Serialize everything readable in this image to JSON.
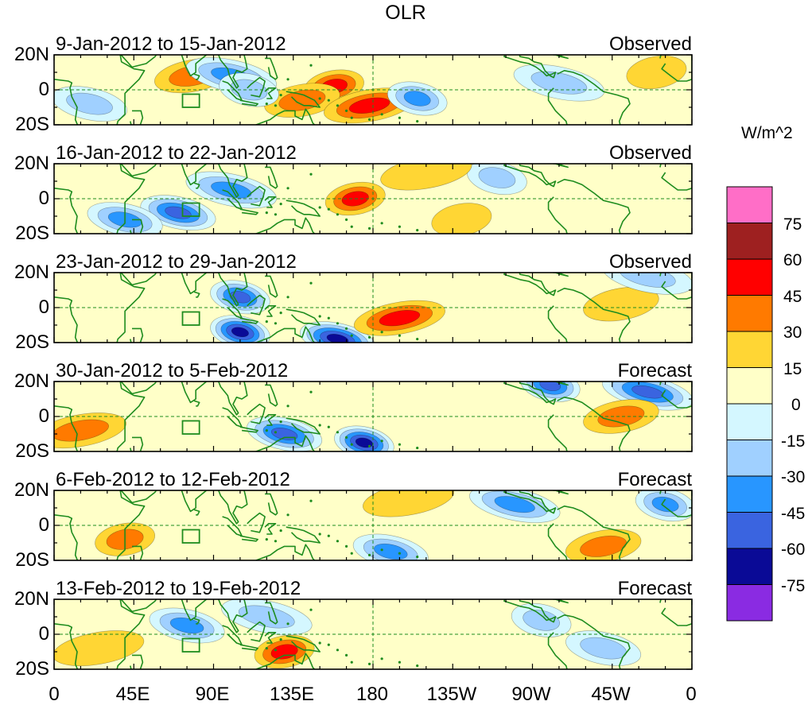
{
  "title": "OLR",
  "units": "W/m^2",
  "panels": [
    {
      "period": "9-Jan-2012 to 15-Jan-2012",
      "type": "Observed"
    },
    {
      "period": "16-Jan-2012 to 22-Jan-2012",
      "type": "Observed"
    },
    {
      "period": "23-Jan-2012 to 29-Jan-2012",
      "type": "Observed"
    },
    {
      "period": "30-Jan-2012 to 5-Feb-2012",
      "type": "Forecast"
    },
    {
      "period": "6-Feb-2012 to 12-Feb-2012",
      "type": "Forecast"
    },
    {
      "period": "13-Feb-2012 to 19-Feb-2012",
      "type": "Forecast"
    }
  ],
  "lat_ticks": [
    "20N",
    "0",
    "20S"
  ],
  "lon_ticks": [
    "0",
    "45E",
    "90E",
    "135E",
    "180",
    "135W",
    "90W",
    "45W",
    "0"
  ],
  "colorbar": {
    "labels": [
      "75",
      "60",
      "45",
      "30",
      "15",
      "0",
      "-15",
      "-30",
      "-45",
      "-60",
      "-75"
    ],
    "colors": [
      "#ff6ec7",
      "#9e2020",
      "#ff0000",
      "#ff7a00",
      "#ffd634",
      "#ffffc8",
      "#d4f7ff",
      "#a0d0ff",
      "#2896ff",
      "#3a64e0",
      "#0a0a96",
      "#8a2be2"
    ]
  },
  "chart_data": {
    "type": "heatmap",
    "title": "OLR",
    "units": "W/m^2",
    "x_range": [
      "0",
      "360"
    ],
    "y_range": [
      "20S",
      "20N"
    ],
    "levels": [
      -75,
      -60,
      -45,
      -30,
      -15,
      0,
      15,
      30,
      45,
      60,
      75
    ],
    "panels": [
      {
        "label": "9-Jan-2012 to 15-Jan-2012",
        "type": "Observed",
        "anomalies": [
          {
            "lon": 158,
            "lat": 2,
            "value": 45
          },
          {
            "lon": 140,
            "lat": -6,
            "value": 30
          },
          {
            "lon": 178,
            "lat": -9,
            "value": 45
          },
          {
            "lon": 205,
            "lat": -5,
            "value": -45
          },
          {
            "lon": 78,
            "lat": 8,
            "value": 30
          },
          {
            "lon": 100,
            "lat": 8,
            "value": -45
          },
          {
            "lon": 110,
            "lat": 0,
            "value": -30
          },
          {
            "lon": 20,
            "lat": -8,
            "value": -30
          },
          {
            "lon": 285,
            "lat": 4,
            "value": -30
          },
          {
            "lon": 340,
            "lat": 10,
            "value": 15
          }
        ]
      },
      {
        "label": "16-Jan-2012 to 22-Jan-2012",
        "type": "Observed",
        "anomalies": [
          {
            "lon": 170,
            "lat": 0,
            "value": 45
          },
          {
            "lon": 70,
            "lat": -8,
            "value": -60
          },
          {
            "lon": 100,
            "lat": 5,
            "value": -45
          },
          {
            "lon": 250,
            "lat": 12,
            "value": -30
          },
          {
            "lon": 40,
            "lat": -12,
            "value": -45
          },
          {
            "lon": 210,
            "lat": 15,
            "value": 15
          },
          {
            "lon": 230,
            "lat": -12,
            "value": 15
          }
        ]
      },
      {
        "label": "23-Jan-2012 to 29-Jan-2012",
        "type": "Observed",
        "anomalies": [
          {
            "lon": 105,
            "lat": -14,
            "value": -75
          },
          {
            "lon": 160,
            "lat": -18,
            "value": -75
          },
          {
            "lon": 195,
            "lat": -6,
            "value": 45
          },
          {
            "lon": 105,
            "lat": 6,
            "value": -60
          },
          {
            "lon": 320,
            "lat": 2,
            "value": 15
          },
          {
            "lon": 335,
            "lat": 18,
            "value": -30
          }
        ]
      },
      {
        "label": "30-Jan-2012 to 5-Feb-2012",
        "type": "Forecast",
        "anomalies": [
          {
            "lon": 175,
            "lat": -15,
            "value": -75
          },
          {
            "lon": 130,
            "lat": -10,
            "value": -60
          },
          {
            "lon": 335,
            "lat": 14,
            "value": -60
          },
          {
            "lon": 280,
            "lat": 18,
            "value": -60
          },
          {
            "lon": 320,
            "lat": 0,
            "value": 30
          },
          {
            "lon": 15,
            "lat": -8,
            "value": 30
          }
        ]
      },
      {
        "label": "6-Feb-2012 to 12-Feb-2012",
        "type": "Forecast",
        "anomalies": [
          {
            "lon": 40,
            "lat": -8,
            "value": 30
          },
          {
            "lon": 190,
            "lat": -15,
            "value": -45
          },
          {
            "lon": 260,
            "lat": 12,
            "value": -45
          },
          {
            "lon": 345,
            "lat": 12,
            "value": -45
          },
          {
            "lon": 310,
            "lat": -12,
            "value": 30
          },
          {
            "lon": 200,
            "lat": 15,
            "value": 15
          }
        ]
      },
      {
        "label": "13-Feb-2012 to 19-Feb-2012",
        "type": "Forecast",
        "anomalies": [
          {
            "lon": 130,
            "lat": -10,
            "value": 45
          },
          {
            "lon": 75,
            "lat": 5,
            "value": -45
          },
          {
            "lon": 120,
            "lat": 10,
            "value": -30
          },
          {
            "lon": 275,
            "lat": 8,
            "value": -30
          },
          {
            "lon": 310,
            "lat": -8,
            "value": -30
          },
          {
            "lon": 25,
            "lat": -8,
            "value": 15
          }
        ]
      }
    ]
  }
}
